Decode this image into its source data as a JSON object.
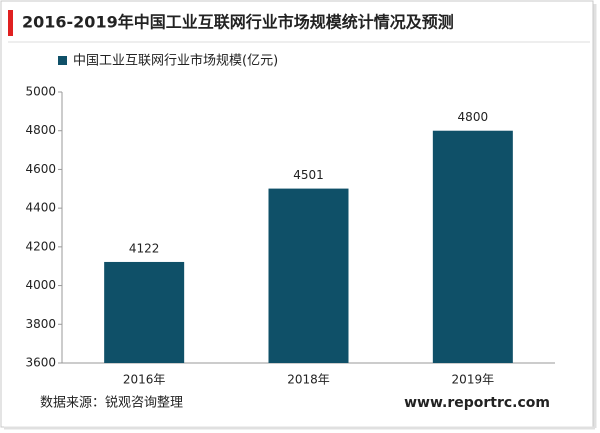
{
  "chart_data": {
    "type": "bar",
    "title": "2016-2019年中国工业互联网行业市场规模统计情况及预测",
    "categories": [
      "2016年",
      "2018年",
      "2019年"
    ],
    "series": [
      {
        "name": "中国工业互联网行业市场规模(亿元)",
        "color": "#0f5068",
        "values": [
          4122,
          4501,
          4800
        ]
      }
    ],
    "ylim": [
      3600,
      5000
    ],
    "yticks": [
      3600,
      3800,
      4000,
      4200,
      4400,
      4600,
      4800,
      5000
    ],
    "grid": false,
    "title_accent_color": "#e02020",
    "source": "数据来源：锐观咨询整理",
    "website": "www.reportrc.com"
  }
}
